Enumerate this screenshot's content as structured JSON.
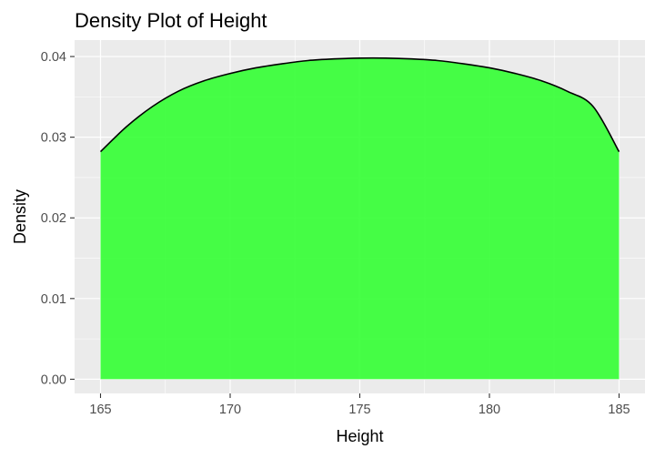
{
  "chart_data": {
    "type": "area",
    "title": "Density Plot of Height",
    "xlabel": "Height",
    "ylabel": "Density",
    "xlim": [
      164.0,
      186.0
    ],
    "ylim": [
      -0.00176,
      0.04204
    ],
    "x_ticks": [
      165,
      170,
      175,
      180,
      185
    ],
    "x_tick_labels": [
      "165",
      "170",
      "175",
      "180",
      "185"
    ],
    "y_ticks": [
      0.0,
      0.01,
      0.02,
      0.03,
      0.04
    ],
    "y_tick_labels": [
      "0.00",
      "0.01",
      "0.02",
      "0.03",
      "0.04"
    ],
    "grid": true,
    "legend": "none",
    "series": [
      {
        "x": [
          165,
          166,
          167,
          168,
          169,
          170,
          171,
          172,
          173,
          174,
          175,
          176,
          177,
          178,
          179,
          180,
          181,
          182,
          183,
          184,
          185
        ],
        "values": [
          0.0282,
          0.0313,
          0.0338,
          0.0357,
          0.037,
          0.0379,
          0.0386,
          0.0391,
          0.0395,
          0.0397,
          0.0398,
          0.0398,
          0.0397,
          0.0395,
          0.0391,
          0.0386,
          0.0379,
          0.037,
          0.0357,
          0.0338,
          0.0282
        ]
      }
    ],
    "colors": {
      "fill": "#33ff33",
      "line": "#000000",
      "panel": "#ebebeb",
      "grid": "#ffffff",
      "axis_text": "#4d4d4d",
      "tick": "#333333",
      "title_text": "#000000"
    }
  }
}
